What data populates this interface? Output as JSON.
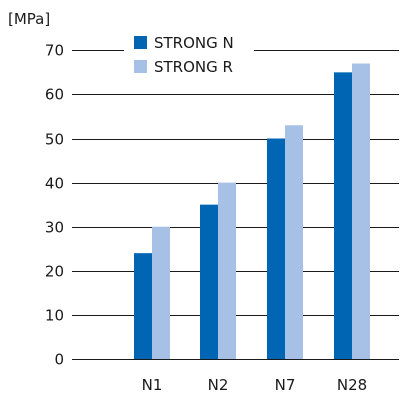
{
  "chart_data": {
    "type": "bar",
    "title": "",
    "xlabel": "",
    "ylabel": "",
    "unit_label": "[MPa]",
    "categories": [
      "N1",
      "N2",
      "N7",
      "N28"
    ],
    "series": [
      {
        "name": "STRONG N",
        "color": "#0066b3",
        "values": [
          24,
          35,
          50,
          65
        ]
      },
      {
        "name": "STRONG R",
        "color": "#a7c0e5",
        "values": [
          30,
          40,
          53,
          67
        ]
      }
    ],
    "ylim": [
      0,
      70
    ],
    "yticks": [
      0,
      10,
      20,
      30,
      40,
      50,
      60,
      70
    ],
    "grid": true,
    "legend_position": "top-center"
  }
}
